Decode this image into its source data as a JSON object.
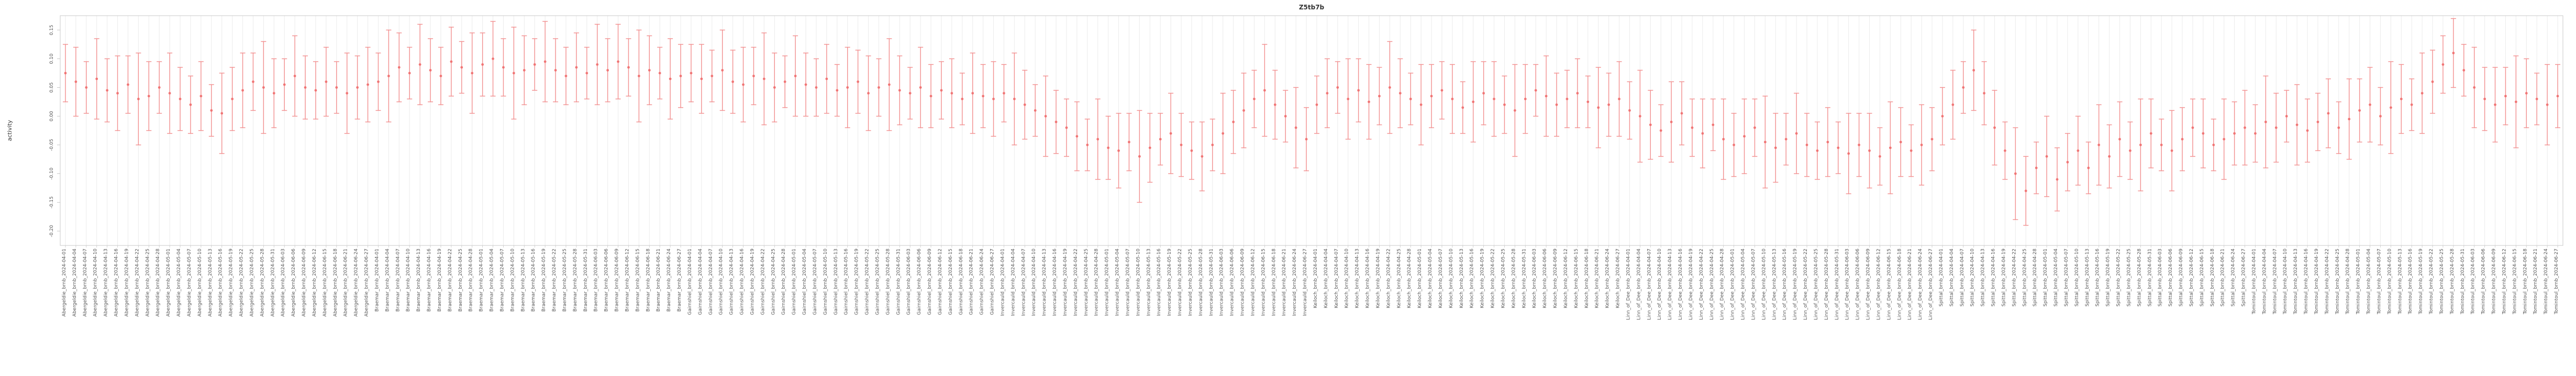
{
  "chart_data": {
    "type": "scatter",
    "subtype": "errorbar",
    "title": "Z5tb7b",
    "xlabel": "",
    "ylabel": "activity",
    "legend": "none",
    "grid": "vertical-per-category",
    "ylim": [
      -0.225,
      0.175
    ],
    "y_ticks": [
      -0.2,
      -0.15,
      -0.1,
      -0.05,
      0.0,
      0.05,
      0.1,
      0.15
    ],
    "y_tick_labels": [
      "-0.20",
      "-0.15",
      "-0.10",
      "-0.05",
      "0.00",
      "0.05",
      "0.10",
      "0.15"
    ],
    "label_format": "{site}_brnb_{date}",
    "sites": [
      "Abergeldie",
      "Braemar",
      "Gairnshiel",
      "Invercauld",
      "Keiloch",
      "Linn_of_Dee",
      "Spittal",
      "Tomintoul"
    ],
    "dates": [
      "2024-04-01",
      "2024-04-04",
      "2024-04-07",
      "2024-04-10",
      "2024-04-13",
      "2024-04-16",
      "2024-04-19",
      "2024-04-22",
      "2024-04-25",
      "2024-04-28",
      "2024-05-01",
      "2024-05-04",
      "2024-05-07",
      "2024-05-10",
      "2024-05-13",
      "2024-05-16",
      "2024-05-19",
      "2024-05-22",
      "2024-05-25",
      "2024-05-28",
      "2024-05-31",
      "2024-06-03",
      "2024-06-06",
      "2024-06-09",
      "2024-06-12",
      "2024-06-15",
      "2024-06-18",
      "2024-06-21",
      "2024-06-24",
      "2024-06-27"
    ],
    "values": [
      0.075,
      0.06,
      0.05,
      0.065,
      0.045,
      0.04,
      0.055,
      0.03,
      0.035,
      0.05,
      0.04,
      0.03,
      0.02,
      0.035,
      0.01,
      0.005,
      0.03,
      0.045,
      0.06,
      0.05,
      0.04,
      0.055,
      0.07,
      0.05,
      0.045,
      0.06,
      0.05,
      0.04,
      0.05,
      0.055,
      0.06,
      0.07,
      0.085,
      0.075,
      0.09,
      0.08,
      0.07,
      0.095,
      0.085,
      0.075,
      0.09,
      0.1,
      0.085,
      0.075,
      0.08,
      0.09,
      0.095,
      0.08,
      0.07,
      0.085,
      0.075,
      0.09,
      0.08,
      0.095,
      0.085,
      0.07,
      0.08,
      0.075,
      0.065,
      0.07,
      0.075,
      0.065,
      0.07,
      0.08,
      0.06,
      0.055,
      0.07,
      0.065,
      0.05,
      0.06,
      0.07,
      0.055,
      0.05,
      0.065,
      0.045,
      0.05,
      0.06,
      0.04,
      0.05,
      0.055,
      0.045,
      0.04,
      0.05,
      0.035,
      0.045,
      0.04,
      0.03,
      0.04,
      0.035,
      0.03,
      0.04,
      0.03,
      0.02,
      0.01,
      0.0,
      -0.01,
      -0.02,
      -0.035,
      -0.05,
      -0.04,
      -0.055,
      -0.06,
      -0.045,
      -0.07,
      -0.055,
      -0.04,
      -0.03,
      -0.05,
      -0.06,
      -0.07,
      -0.05,
      -0.03,
      -0.01,
      0.01,
      0.03,
      0.045,
      0.02,
      0.0,
      -0.02,
      -0.04,
      0.02,
      0.04,
      0.05,
      0.03,
      0.045,
      0.025,
      0.035,
      0.05,
      0.04,
      0.03,
      0.02,
      0.035,
      0.045,
      0.03,
      0.015,
      0.025,
      0.04,
      0.03,
      0.02,
      0.01,
      0.03,
      0.045,
      0.035,
      0.02,
      0.03,
      0.04,
      0.025,
      0.015,
      0.02,
      0.03,
      0.01,
      0.0,
      -0.015,
      -0.025,
      -0.01,
      0.005,
      -0.02,
      -0.03,
      -0.015,
      -0.04,
      -0.05,
      -0.035,
      -0.02,
      -0.045,
      -0.055,
      -0.04,
      -0.03,
      -0.05,
      -0.06,
      -0.045,
      -0.055,
      -0.065,
      -0.05,
      -0.06,
      -0.07,
      -0.055,
      -0.045,
      -0.06,
      -0.05,
      -0.04,
      0.0,
      0.02,
      0.05,
      0.08,
      0.04,
      -0.02,
      -0.06,
      -0.1,
      -0.13,
      -0.09,
      -0.07,
      -0.11,
      -0.08,
      -0.06,
      -0.09,
      -0.05,
      -0.07,
      -0.04,
      -0.06,
      -0.05,
      -0.03,
      -0.05,
      -0.06,
      -0.04,
      -0.02,
      -0.03,
      -0.05,
      -0.04,
      -0.03,
      -0.02,
      -0.03,
      -0.01,
      -0.02,
      0.0,
      -0.015,
      -0.025,
      -0.01,
      0.005,
      -0.02,
      -0.005,
      0.01,
      0.02,
      0.0,
      0.015,
      0.03,
      0.02,
      0.04,
      0.06,
      0.09,
      0.11,
      0.08,
      0.05,
      0.03,
      0.02,
      0.035,
      0.025,
      0.04,
      0.03,
      0.02,
      0.035
    ],
    "errors": [
      0.05,
      0.06,
      0.045,
      0.07,
      0.055,
      0.065,
      0.05,
      0.08,
      0.06,
      0.045,
      0.07,
      0.055,
      0.05,
      0.06,
      0.045,
      0.07,
      0.055,
      0.065,
      0.05,
      0.08,
      0.06,
      0.045,
      0.07,
      0.055,
      0.05,
      0.06,
      0.045,
      0.07,
      0.055,
      0.065,
      0.05,
      0.08,
      0.06,
      0.045,
      0.07,
      0.055,
      0.05,
      0.06,
      0.045,
      0.07,
      0.055,
      0.065,
      0.05,
      0.08,
      0.06,
      0.045,
      0.07,
      0.055,
      0.05,
      0.06,
      0.045,
      0.07,
      0.055,
      0.065,
      0.05,
      0.08,
      0.06,
      0.045,
      0.07,
      0.055,
      0.05,
      0.06,
      0.045,
      0.07,
      0.055,
      0.065,
      0.05,
      0.08,
      0.06,
      0.045,
      0.07,
      0.055,
      0.05,
      0.06,
      0.045,
      0.07,
      0.055,
      0.065,
      0.05,
      0.08,
      0.06,
      0.045,
      0.07,
      0.055,
      0.05,
      0.06,
      0.045,
      0.07,
      0.055,
      0.065,
      0.05,
      0.08,
      0.06,
      0.045,
      0.07,
      0.055,
      0.05,
      0.06,
      0.045,
      0.07,
      0.055,
      0.065,
      0.05,
      0.08,
      0.06,
      0.045,
      0.07,
      0.055,
      0.05,
      0.06,
      0.045,
      0.07,
      0.055,
      0.065,
      0.05,
      0.08,
      0.06,
      0.045,
      0.07,
      0.055,
      0.05,
      0.06,
      0.045,
      0.07,
      0.055,
      0.065,
      0.05,
      0.08,
      0.06,
      0.045,
      0.07,
      0.055,
      0.05,
      0.06,
      0.045,
      0.07,
      0.055,
      0.065,
      0.05,
      0.08,
      0.06,
      0.045,
      0.07,
      0.055,
      0.05,
      0.06,
      0.045,
      0.07,
      0.055,
      0.065,
      0.05,
      0.08,
      0.06,
      0.045,
      0.07,
      0.055,
      0.05,
      0.06,
      0.045,
      0.07,
      0.055,
      0.065,
      0.05,
      0.08,
      0.06,
      0.045,
      0.07,
      0.055,
      0.05,
      0.06,
      0.045,
      0.07,
      0.055,
      0.065,
      0.05,
      0.08,
      0.06,
      0.045,
      0.07,
      0.055,
      0.05,
      0.06,
      0.045,
      0.07,
      0.055,
      0.065,
      0.05,
      0.08,
      0.06,
      0.045,
      0.07,
      0.055,
      0.05,
      0.06,
      0.045,
      0.07,
      0.055,
      0.065,
      0.05,
      0.08,
      0.06,
      0.045,
      0.07,
      0.055,
      0.05,
      0.06,
      0.045,
      0.07,
      0.055,
      0.065,
      0.05,
      0.08,
      0.06,
      0.045,
      0.07,
      0.055,
      0.05,
      0.06,
      0.045,
      0.07,
      0.055,
      0.065,
      0.05,
      0.08,
      0.06,
      0.045,
      0.07,
      0.055,
      0.05,
      0.06,
      0.045,
      0.07,
      0.055,
      0.065,
      0.05,
      0.08,
      0.06,
      0.045,
      0.07,
      0.055
    ],
    "colors": {
      "point": "#f07575",
      "errorbar": "#f28e8e",
      "grid": "#ebebeb",
      "border": "#c8c8c8",
      "text": "#333333",
      "tick_text": "#555555",
      "background": "#ffffff"
    }
  }
}
